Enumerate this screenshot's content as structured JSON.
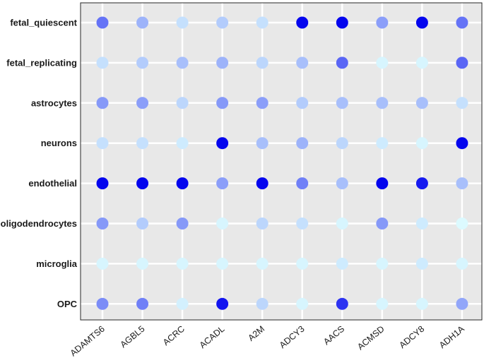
{
  "chart_data": {
    "type": "dot_matrix",
    "columns": [
      "ADAMTS6",
      "AGBL5",
      "ACRC",
      "ACADL",
      "A2M",
      "ADCY3",
      "AACS",
      "ACMSD",
      "ADCY8",
      "ADH1A"
    ],
    "rows": [
      "fetal_quiescent",
      "fetal_replicating",
      "astrocytes",
      "neurons",
      "endothelial",
      "oligodendrocytes",
      "microglia",
      "OPC"
    ],
    "values": [
      [
        0.55,
        0.3,
        0.12,
        0.2,
        0.12,
        0.98,
        0.98,
        0.38,
        0.98,
        0.55
      ],
      [
        0.12,
        0.2,
        0.25,
        0.3,
        0.16,
        0.25,
        0.6,
        0.04,
        0.04,
        0.6
      ],
      [
        0.4,
        0.38,
        0.16,
        0.4,
        0.38,
        0.2,
        0.25,
        0.25,
        0.25,
        0.12
      ],
      [
        0.12,
        0.12,
        0.08,
        0.98,
        0.25,
        0.3,
        0.16,
        0.08,
        0.04,
        0.98
      ],
      [
        0.98,
        0.98,
        0.98,
        0.38,
        0.98,
        0.5,
        0.25,
        0.98,
        0.9,
        0.25
      ],
      [
        0.4,
        0.2,
        0.4,
        0.04,
        0.16,
        0.12,
        0.04,
        0.4,
        0.08,
        0.02
      ],
      [
        0.04,
        0.04,
        0.04,
        0.04,
        0.04,
        0.04,
        0.08,
        0.04,
        0.08,
        0.04
      ],
      [
        0.45,
        0.5,
        0.06,
        0.92,
        0.16,
        0.04,
        0.8,
        0.04,
        0.04,
        0.35
      ]
    ],
    "value_scale": "relative expression (0 = low, 1 = high)",
    "color_low": "#e0ffff",
    "color_high": "#0000ee",
    "background_color": "#e8e8e8",
    "grid_color": "#ffffff",
    "grid": true,
    "xlabel": "",
    "ylabel": "",
    "title": ""
  }
}
